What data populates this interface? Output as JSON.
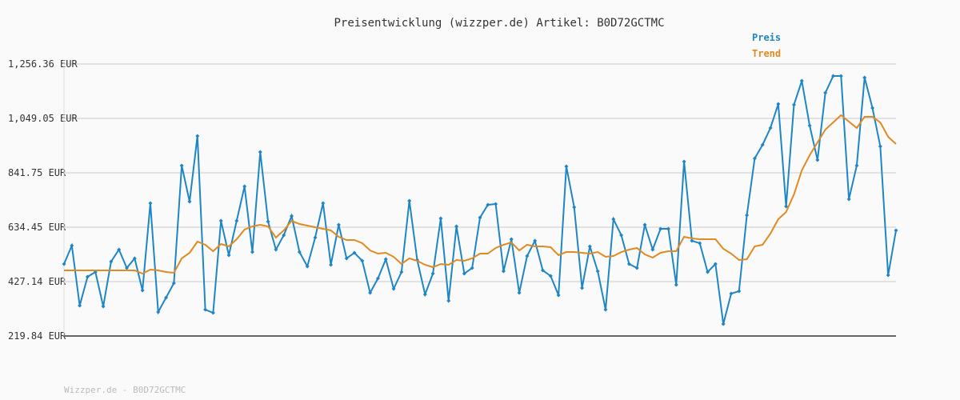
{
  "chart_data": {
    "type": "line",
    "title": "Preisentwicklung (wizzper.de) Artikel: B0D72GCTMC",
    "footer": "Wizzper.de - B0D72GCTMC",
    "ylim": [
      219.84,
      1256.36
    ],
    "yticks": [
      {
        "value": 219.84,
        "label": "219.84 EUR"
      },
      {
        "value": 427.14,
        "label": "427.14 EUR"
      },
      {
        "value": 634.45,
        "label": "634.45 EUR"
      },
      {
        "value": 841.75,
        "label": "841.75 EUR"
      },
      {
        "value": 1049.05,
        "label": "1,049.05 EUR"
      },
      {
        "value": 1256.36,
        "label": "1,256.36 EUR"
      }
    ],
    "grid": true,
    "legend": "top-right",
    "series": [
      {
        "name": "Preis",
        "color": "#1f86c6",
        "markers": true,
        "values": [
          494.2,
          564.3,
          335.7,
          445.4,
          463.7,
          332.6,
          503.4,
          549.1,
          479.0,
          515.6,
          393.6,
          725.9,
          311.3,
          366.2,
          421.0,
          869.2,
          732.0,
          982.0,
          320.4,
          308.2,
          658.8,
          527.8,
          658.8,
          789.9,
          539.9,
          921.0,
          655.8,
          549.1,
          604.0,
          677.1,
          539.9,
          485.1,
          594.8,
          725.9,
          491.2,
          643.6,
          515.6,
          536.9,
          506.4,
          384.5,
          439.3,
          512.5,
          399.7,
          463.7,
          735.1,
          509.5,
          378.4,
          457.6,
          668.0,
          354.0,
          637.5,
          457.6,
          479.0,
          671.0,
          719.8,
          722.9,
          466.8,
          588.7,
          384.5,
          524.7,
          582.6,
          469.8,
          448.5,
          375.3,
          866.1,
          710.7,
          402.8,
          561.3,
          466.8,
          320.4,
          664.9,
          604.0,
          494.2,
          479.0,
          643.6,
          549.1,
          628.4,
          628.4,
          415.0,
          884.4,
          582.6,
          573.5,
          463.7,
          494.2,
          265.6,
          381.4,
          390.6,
          680.2,
          896.6,
          948.5,
          1012.5,
          1103.9,
          713.7,
          1100.9,
          1192.3,
          1021.6,
          890.5,
          1146.6,
          1210.6,
          1210.6,
          741.2,
          869.2,
          1204.5,
          1088.7,
          942.4,
          451.5,
          622.3
        ]
      },
      {
        "name": "Trend",
        "color": "#e08a22",
        "markers": false,
        "values": [
          469.8,
          469.8,
          469.8,
          469.8,
          469.8,
          469.8,
          469.8,
          469.8,
          469.8,
          469.8,
          457.6,
          472.9,
          469.8,
          463.7,
          460.7,
          515.6,
          536.9,
          579.6,
          567.4,
          543.0,
          570.4,
          561.3,
          588.7,
          625.3,
          637.5,
          643.6,
          637.5,
          594.8,
          622.3,
          658.8,
          646.6,
          640.5,
          634.4,
          628.4,
          622.3,
          597.9,
          585.7,
          585.7,
          573.5,
          546.0,
          533.8,
          536.9,
          521.6,
          494.2,
          515.6,
          506.4,
          491.2,
          482.0,
          494.2,
          491.2,
          509.5,
          506.4,
          515.6,
          533.8,
          533.8,
          555.2,
          567.4,
          576.5,
          546.0,
          567.4,
          561.3,
          561.3,
          558.2,
          527.8,
          539.9,
          539.9,
          536.9,
          533.8,
          539.9,
          521.6,
          524.7,
          539.9,
          549.1,
          555.2,
          530.8,
          518.6,
          536.9,
          543.0,
          543.0,
          597.9,
          591.8,
          588.7,
          588.7,
          588.7,
          552.1,
          533.8,
          509.5,
          512.5,
          561.3,
          567.4,
          610.1,
          664.9,
          692.4,
          759.4,
          850.9,
          908.8,
          957.6,
          1006.4,
          1033.8,
          1061.3,
          1036.9,
          1012.5,
          1055.2,
          1055.2,
          1033.8,
          978.9,
          951.5
        ]
      }
    ]
  }
}
